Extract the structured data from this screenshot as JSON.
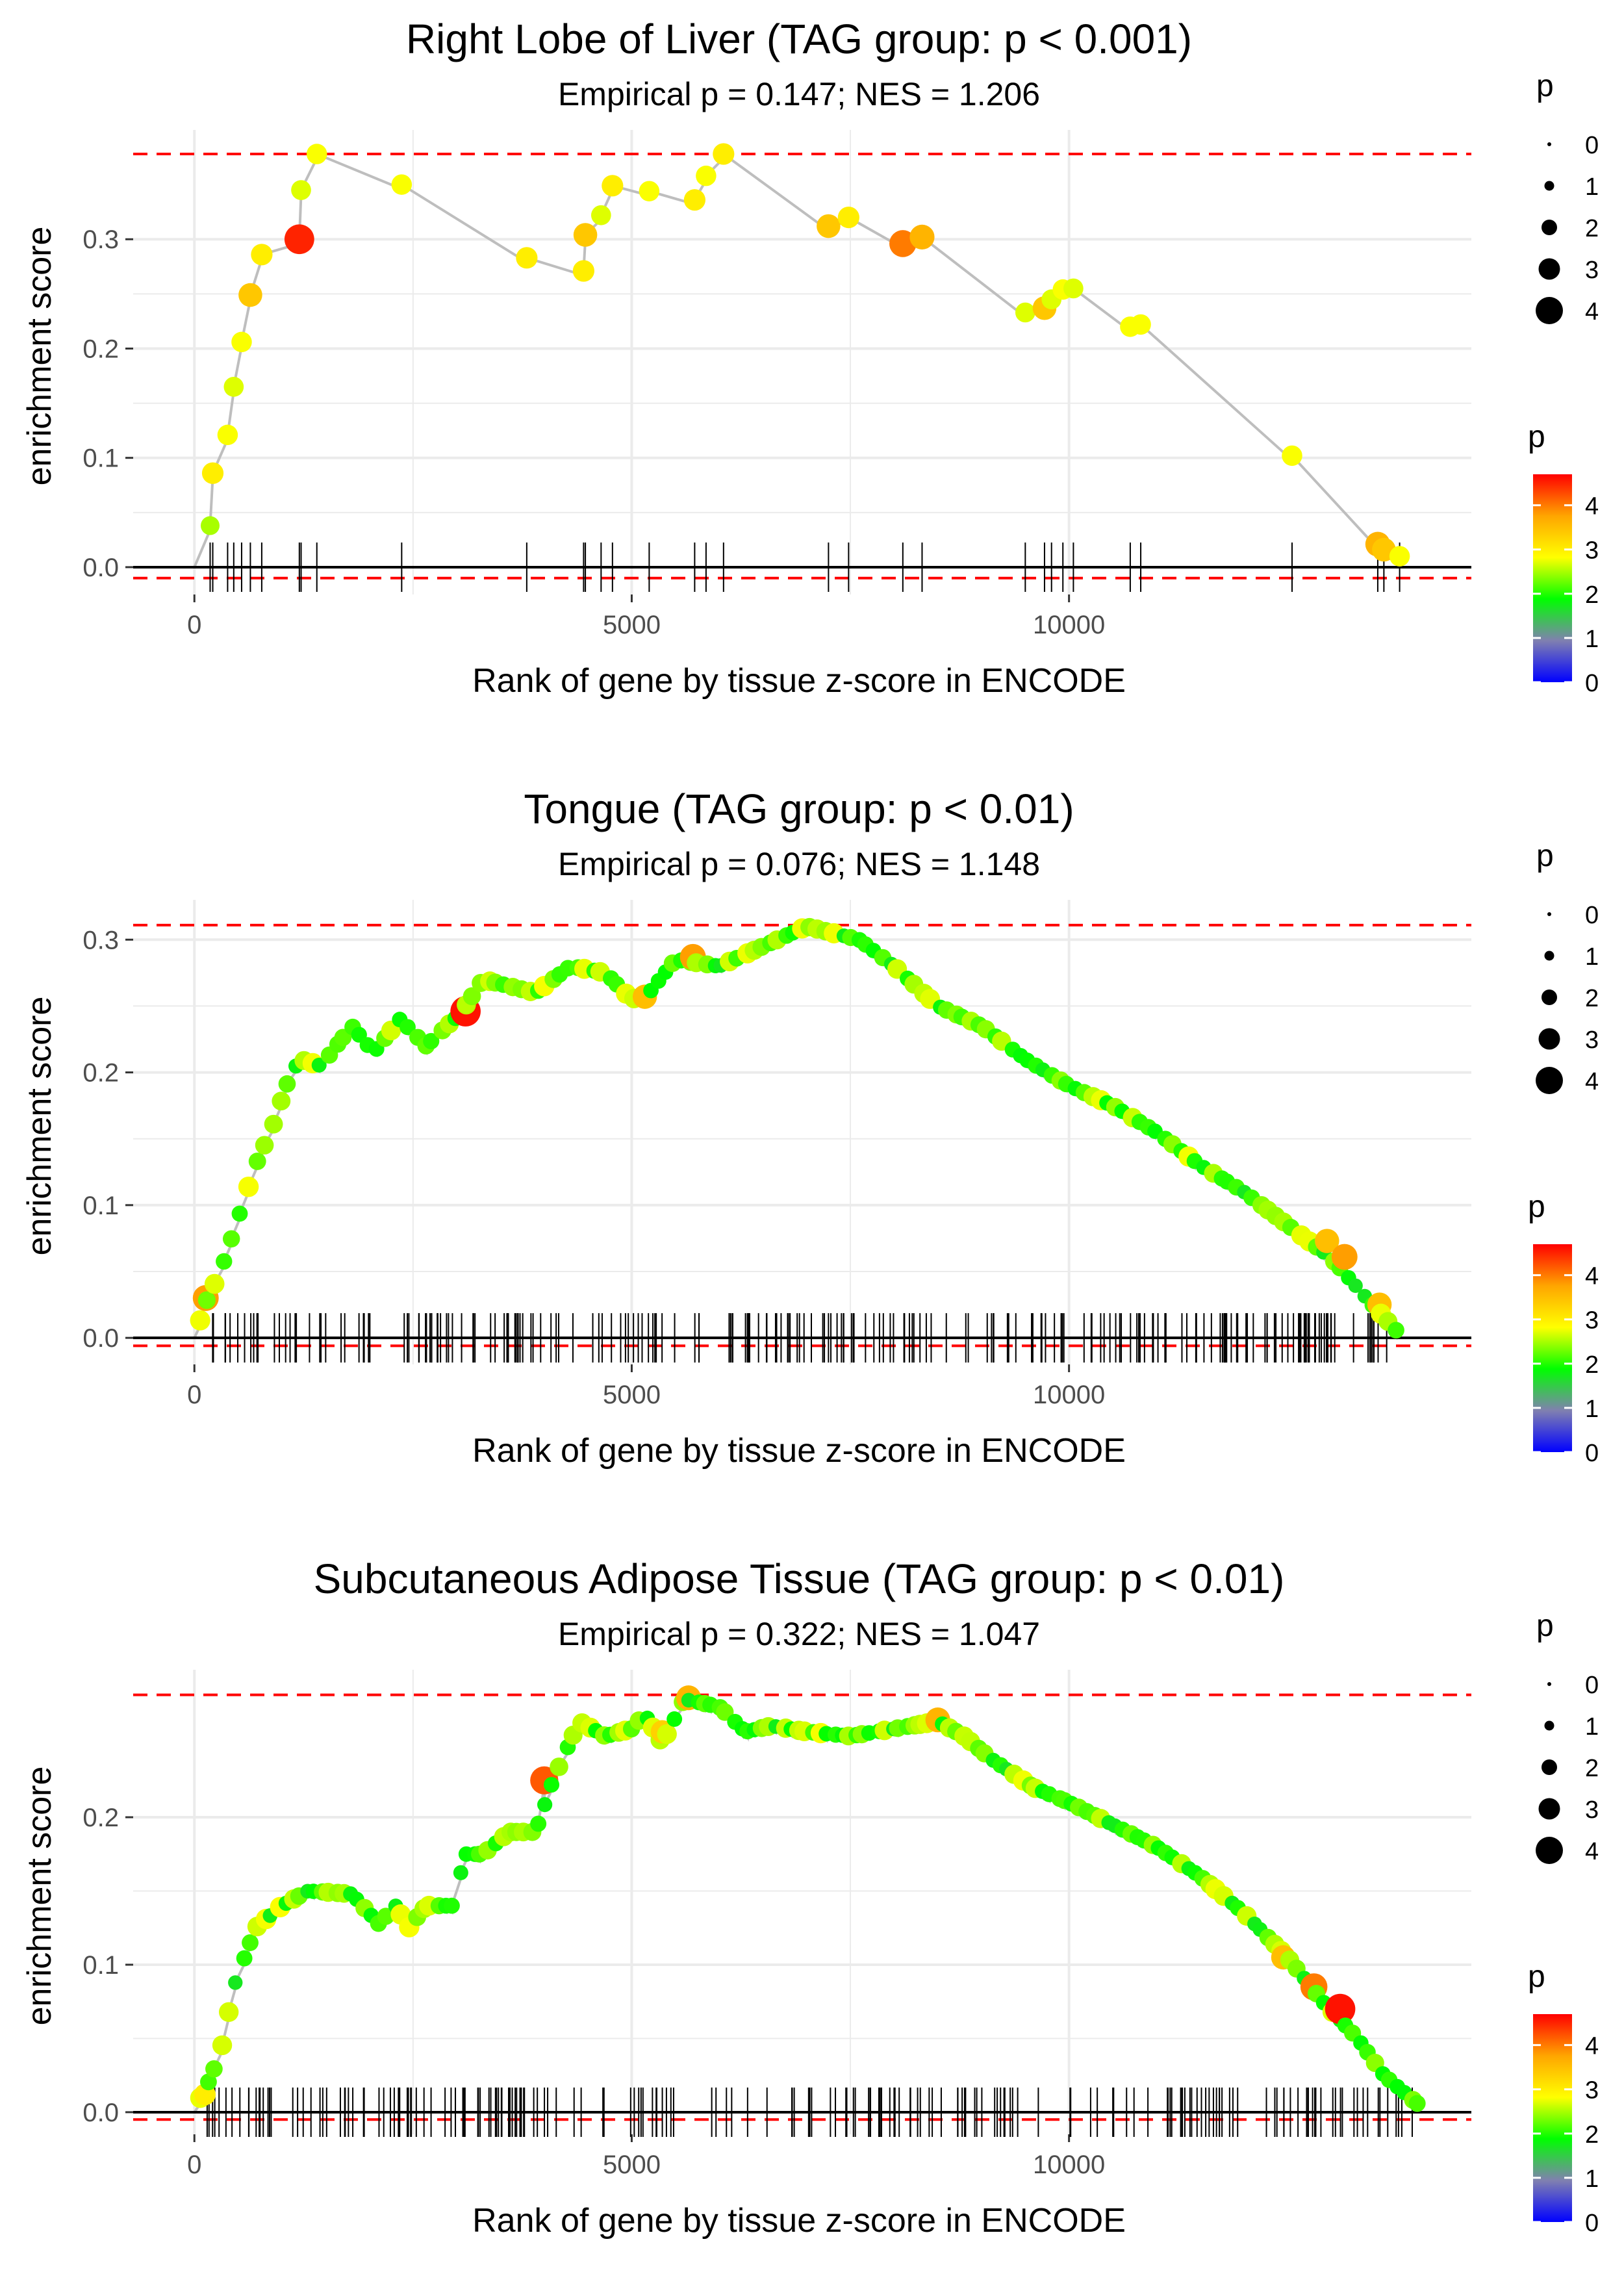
{
  "colors": {
    "grid": "#ebebeb",
    "line": "#bebebe",
    "threshold": "#ff0000",
    "axis": "#000000",
    "gradient": [
      "#0000ff",
      "#8080b0",
      "#00ff00",
      "#ffff00",
      "#ffa500",
      "#ff0000"
    ]
  },
  "chart_data": [
    {
      "type": "scatter",
      "title": "Right Lobe of Liver (TAG group: p < 0.001)",
      "subtitle": "Empirical p = 0.147; NES = 1.206",
      "xlabel": "Rank of gene by tissue z-score in ENCODE",
      "ylabel": "enrichment score",
      "xlim": [
        -700,
        14600
      ],
      "ylim": [
        -0.025,
        0.4
      ],
      "xticks": [
        0,
        5000,
        10000
      ],
      "yticks": [
        0.0,
        0.1,
        0.2,
        0.3
      ],
      "ytick_labels": [
        "0.0",
        "0.1",
        "0.2",
        "0.3"
      ],
      "max_es": 0.378,
      "min_es": -0.01,
      "hits": [
        {
          "rank": 180,
          "es": 0.038,
          "p": 2.5
        },
        {
          "rank": 210,
          "es": 0.086,
          "p": 3.0
        },
        {
          "rank": 380,
          "es": 0.121,
          "p": 2.8
        },
        {
          "rank": 450,
          "es": 0.165,
          "p": 2.7
        },
        {
          "rank": 540,
          "es": 0.206,
          "p": 2.8
        },
        {
          "rank": 640,
          "es": 0.249,
          "p": 3.4
        },
        {
          "rank": 770,
          "es": 0.286,
          "p": 3.0
        },
        {
          "rank": 1200,
          "es": 0.3,
          "p": 4.5
        },
        {
          "rank": 1220,
          "es": 0.345,
          "p": 2.7
        },
        {
          "rank": 1400,
          "es": 0.378,
          "p": 2.8
        },
        {
          "rank": 2370,
          "es": 0.35,
          "p": 2.8
        },
        {
          "rank": 3800,
          "es": 0.283,
          "p": 3.0
        },
        {
          "rank": 4450,
          "es": 0.271,
          "p": 3.0
        },
        {
          "rank": 4470,
          "es": 0.304,
          "p": 3.4
        },
        {
          "rank": 4650,
          "es": 0.322,
          "p": 2.7
        },
        {
          "rank": 4780,
          "es": 0.349,
          "p": 3.0
        },
        {
          "rank": 5200,
          "es": 0.344,
          "p": 2.8
        },
        {
          "rank": 5720,
          "es": 0.336,
          "p": 3.0
        },
        {
          "rank": 5850,
          "es": 0.358,
          "p": 2.8
        },
        {
          "rank": 6050,
          "es": 0.378,
          "p": 3.0
        },
        {
          "rank": 7250,
          "es": 0.312,
          "p": 3.4
        },
        {
          "rank": 7480,
          "es": 0.32,
          "p": 3.0
        },
        {
          "rank": 8100,
          "es": 0.296,
          "p": 4.0
        },
        {
          "rank": 8320,
          "es": 0.302,
          "p": 3.6
        },
        {
          "rank": 9500,
          "es": 0.233,
          "p": 2.7
        },
        {
          "rank": 9720,
          "es": 0.237,
          "p": 3.4
        },
        {
          "rank": 9800,
          "es": 0.245,
          "p": 2.7
        },
        {
          "rank": 9930,
          "es": 0.254,
          "p": 2.8
        },
        {
          "rank": 10050,
          "es": 0.255,
          "p": 2.7
        },
        {
          "rank": 10700,
          "es": 0.22,
          "p": 2.8
        },
        {
          "rank": 10820,
          "es": 0.222,
          "p": 2.8
        },
        {
          "rank": 12550,
          "es": 0.102,
          "p": 2.8
        },
        {
          "rank": 13530,
          "es": 0.021,
          "p": 3.6
        },
        {
          "rank": 13600,
          "es": 0.016,
          "p": 3.4
        },
        {
          "rank": 13780,
          "es": 0.01,
          "p": 2.8
        }
      ]
    },
    {
      "type": "scatter",
      "title": "Tongue (TAG group: p < 0.01)",
      "subtitle": "Empirical p = 0.076; NES = 1.148",
      "xlabel": "Rank of gene by tissue z-score in ENCODE",
      "ylabel": "enrichment score",
      "xlim": [
        -700,
        14600
      ],
      "ylim": [
        -0.02,
        0.33
      ],
      "xticks": [
        0,
        5000,
        10000
      ],
      "yticks": [
        0.0,
        0.1,
        0.2,
        0.3
      ],
      "ytick_labels": [
        "0.0",
        "0.1",
        "0.2",
        "0.3"
      ],
      "max_es": 0.311,
      "min_es": -0.006,
      "curve": [
        [
          0,
          0.0
        ],
        [
          150,
          0.03
        ],
        [
          300,
          0.05
        ],
        [
          450,
          0.08
        ],
        [
          700,
          0.13
        ],
        [
          900,
          0.16
        ],
        [
          1050,
          0.19
        ],
        [
          1200,
          0.21
        ],
        [
          1450,
          0.205
        ],
        [
          1800,
          0.235
        ],
        [
          2050,
          0.215
        ],
        [
          2350,
          0.24
        ],
        [
          2650,
          0.22
        ],
        [
          3050,
          0.245
        ],
        [
          3300,
          0.27
        ],
        [
          3900,
          0.26
        ],
        [
          4300,
          0.28
        ],
        [
          4700,
          0.275
        ],
        [
          5000,
          0.255
        ],
        [
          5200,
          0.26
        ],
        [
          5500,
          0.285
        ],
        [
          6000,
          0.28
        ],
        [
          6500,
          0.295
        ],
        [
          7000,
          0.31
        ],
        [
          7600,
          0.3
        ],
        [
          8000,
          0.28
        ],
        [
          8500,
          0.25
        ],
        [
          9000,
          0.235
        ],
        [
          9500,
          0.21
        ],
        [
          10000,
          0.19
        ],
        [
          10500,
          0.175
        ],
        [
          11000,
          0.155
        ],
        [
          11500,
          0.13
        ],
        [
          12000,
          0.11
        ],
        [
          12500,
          0.085
        ],
        [
          13000,
          0.06
        ],
        [
          13400,
          0.03
        ],
        [
          13750,
          0.005
        ]
      ],
      "highlights": [
        {
          "rank": 130,
          "es": 0.03,
          "p": 3.8
        },
        {
          "rank": 3100,
          "es": 0.246,
          "p": 4.6
        },
        {
          "rank": 5150,
          "es": 0.257,
          "p": 3.5
        },
        {
          "rank": 5700,
          "es": 0.287,
          "p": 3.8
        },
        {
          "rank": 12950,
          "es": 0.073,
          "p": 3.5
        },
        {
          "rank": 13150,
          "es": 0.061,
          "p": 3.8
        },
        {
          "rank": 13550,
          "es": 0.025,
          "p": 3.5
        }
      ],
      "point_count": 150,
      "tick_count": 230
    },
    {
      "type": "scatter",
      "title": "Subcutaneous Adipose Tissue (TAG group: p < 0.01)",
      "subtitle": "Empirical p = 0.322; NES = 1.047",
      "xlabel": "Rank of gene by tissue z-score in ENCODE",
      "ylabel": "enrichment score",
      "xlim": [
        -700,
        14600
      ],
      "ylim": [
        -0.015,
        0.3
      ],
      "xticks": [
        0,
        5000,
        10000
      ],
      "yticks": [
        0.0,
        0.1,
        0.2
      ],
      "ytick_labels": [
        "0.0",
        "0.1",
        "0.2"
      ],
      "max_es": 0.283,
      "min_es": -0.005,
      "curve": [
        [
          0,
          0.005
        ],
        [
          100,
          0.012
        ],
        [
          300,
          0.04
        ],
        [
          450,
          0.085
        ],
        [
          700,
          0.125
        ],
        [
          1000,
          0.14
        ],
        [
          1300,
          0.15
        ],
        [
          1800,
          0.148
        ],
        [
          2150,
          0.125
        ],
        [
          2250,
          0.145
        ],
        [
          2450,
          0.125
        ],
        [
          2650,
          0.14
        ],
        [
          2950,
          0.14
        ],
        [
          3100,
          0.175
        ],
        [
          3300,
          0.175
        ],
        [
          3600,
          0.19
        ],
        [
          3900,
          0.19
        ],
        [
          4100,
          0.225
        ],
        [
          4250,
          0.245
        ],
        [
          4400,
          0.265
        ],
        [
          4700,
          0.255
        ],
        [
          5000,
          0.26
        ],
        [
          5150,
          0.27
        ],
        [
          5350,
          0.25
        ],
        [
          5600,
          0.28
        ],
        [
          6000,
          0.275
        ],
        [
          6300,
          0.258
        ],
        [
          6600,
          0.262
        ],
        [
          7000,
          0.258
        ],
        [
          7500,
          0.255
        ],
        [
          8000,
          0.26
        ],
        [
          8500,
          0.265
        ],
        [
          8800,
          0.255
        ],
        [
          9100,
          0.24
        ],
        [
          9600,
          0.22
        ],
        [
          10000,
          0.21
        ],
        [
          10500,
          0.195
        ],
        [
          11000,
          0.18
        ],
        [
          11500,
          0.16
        ],
        [
          12000,
          0.135
        ],
        [
          12500,
          0.105
        ],
        [
          12900,
          0.075
        ],
        [
          13300,
          0.05
        ],
        [
          13600,
          0.025
        ],
        [
          14000,
          0.005
        ]
      ],
      "highlights": [
        {
          "rank": 120,
          "es": 0.012,
          "p": 3.0
        },
        {
          "rank": 4000,
          "es": 0.225,
          "p": 4.2
        },
        {
          "rank": 5350,
          "es": 0.258,
          "p": 3.3
        },
        {
          "rank": 5650,
          "es": 0.281,
          "p": 3.6
        },
        {
          "rank": 8500,
          "es": 0.266,
          "p": 3.6
        },
        {
          "rank": 12450,
          "es": 0.105,
          "p": 3.5
        },
        {
          "rank": 12800,
          "es": 0.085,
          "p": 4.0
        },
        {
          "rank": 13100,
          "es": 0.07,
          "p": 4.6
        }
      ],
      "point_count": 170,
      "tick_count": 210
    }
  ],
  "legend": {
    "size_title": "p",
    "size_labels": [
      "0",
      "1",
      "2",
      "3",
      "4"
    ],
    "color_title": "p",
    "color_labels": [
      "4",
      "3",
      "2",
      "1",
      "0"
    ],
    "color_values": [
      4,
      3,
      2,
      1,
      0
    ],
    "color_max": 4.7
  }
}
